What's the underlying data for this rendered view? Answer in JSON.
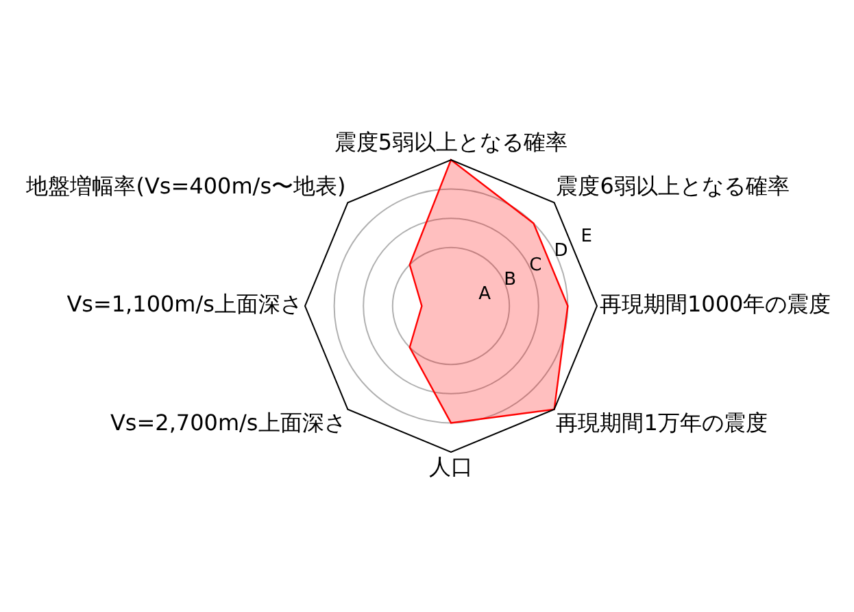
{
  "chart_data": {
    "type": "radar",
    "categories": [
      "震度5弱以上となる確率",
      "震度6弱以上となる確率",
      "再現期間1000年の震度",
      "再現期間1万年の震度",
      "人口",
      "Vs=2,700m/s上面深さ",
      "Vs=1,100m/s上面深さ",
      "地盤増幅率(Vs=400m/s〜地表)"
    ],
    "series": [
      {
        "color": "#ff0000",
        "values": [
          5,
          4,
          4,
          5,
          4,
          2,
          1,
          2
        ]
      }
    ],
    "ylim": [
      0,
      5
    ],
    "yticks": [
      {
        "value": 1,
        "label": "A"
      },
      {
        "value": 2,
        "label": "B"
      },
      {
        "value": 3,
        "label": "C"
      },
      {
        "value": 4,
        "label": "D"
      },
      {
        "value": 5,
        "label": "E"
      }
    ],
    "grid": true
  }
}
